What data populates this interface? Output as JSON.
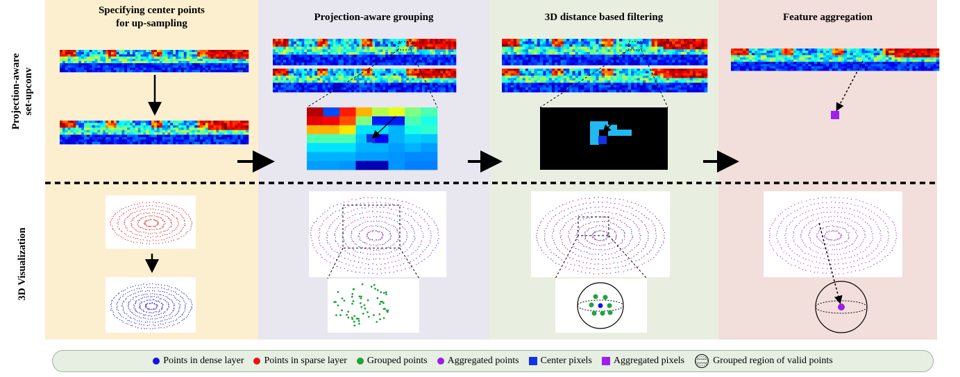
{
  "columns": [
    {
      "title_line1": "Specifying center points",
      "title_line2": "for up-sampling"
    },
    {
      "title_line1": "Projection-aware grouping",
      "title_line2": ""
    },
    {
      "title_line1": "3D distance based filtering",
      "title_line2": ""
    },
    {
      "title_line1": "Feature aggregation",
      "title_line2": ""
    }
  ],
  "rows": {
    "top_line1": "Projection-aware",
    "top_line2": "set-upconv",
    "bottom": "3D Visualization"
  },
  "legend": [
    {
      "label": "Points in dense layer",
      "shape": "dot",
      "color": "#1414e6"
    },
    {
      "label": "Points in sparse layer",
      "shape": "dot",
      "color": "#e61414"
    },
    {
      "label": "Grouped points",
      "shape": "dot",
      "color": "#1fa33a"
    },
    {
      "label": "Aggregated points",
      "shape": "dot",
      "color": "#9a1ee6"
    },
    {
      "label": "Center pixels",
      "shape": "square",
      "color": "#1432e6"
    },
    {
      "label": "Aggregated pixels",
      "shape": "square",
      "color": "#a020f0"
    },
    {
      "label": "Grouped region of valid points",
      "shape": "sphere-icon",
      "color": "#000000"
    }
  ],
  "colors": {
    "col1_bg": "#fcefd0",
    "col2_bg": "#e8e6ef",
    "col3_bg": "#e9efe0",
    "col4_bg": "#f2dedb"
  }
}
